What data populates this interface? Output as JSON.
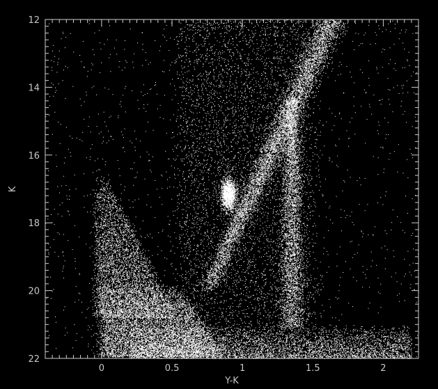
{
  "chart_data": {
    "type": "scatter",
    "title": "",
    "xlabel": "Y-K",
    "ylabel": "K",
    "xlim": [
      -0.4,
      2.25
    ],
    "ylim": [
      22,
      12
    ],
    "y_inverted": true,
    "x_ticks": [
      0,
      0.5,
      1,
      1.5,
      2
    ],
    "x_tick_labels": [
      "0",
      "0.5",
      "1",
      "1.5",
      "2"
    ],
    "y_ticks": [
      12,
      14,
      16,
      18,
      20,
      22
    ],
    "y_tick_labels": [
      "12",
      "14",
      "16",
      "18",
      "20",
      "22"
    ],
    "grid": false,
    "legend": "none",
    "colors": {
      "background": "#000000",
      "points": "#ffffff",
      "axes": "#d0d0d0"
    },
    "description_of_density": {
      "blue_plume": {
        "x": [
          -0.05,
          0.6
        ],
        "y": [
          16.5,
          21.8
        ]
      },
      "dense_blob": {
        "x": [
          0.0,
          0.85
        ],
        "y": [
          19.8,
          21.9
        ]
      },
      "red_giant_branch": {
        "from": [
          0.75,
          20.0
        ],
        "to": [
          1.65,
          12.0
        ]
      },
      "red_clump": {
        "x": 0.9,
        "y": 17.2
      },
      "bright_vertical_sequence": {
        "x": 1.35,
        "y": [
          14.5,
          21.0
        ]
      },
      "faint_floor": {
        "x": [
          0.2,
          2.2
        ],
        "y": [
          21.0,
          22.0
        ]
      },
      "field_scatter": {
        "x": [
          0.6,
          1.4
        ],
        "y": [
          12.0,
          16.0
        ]
      }
    }
  }
}
